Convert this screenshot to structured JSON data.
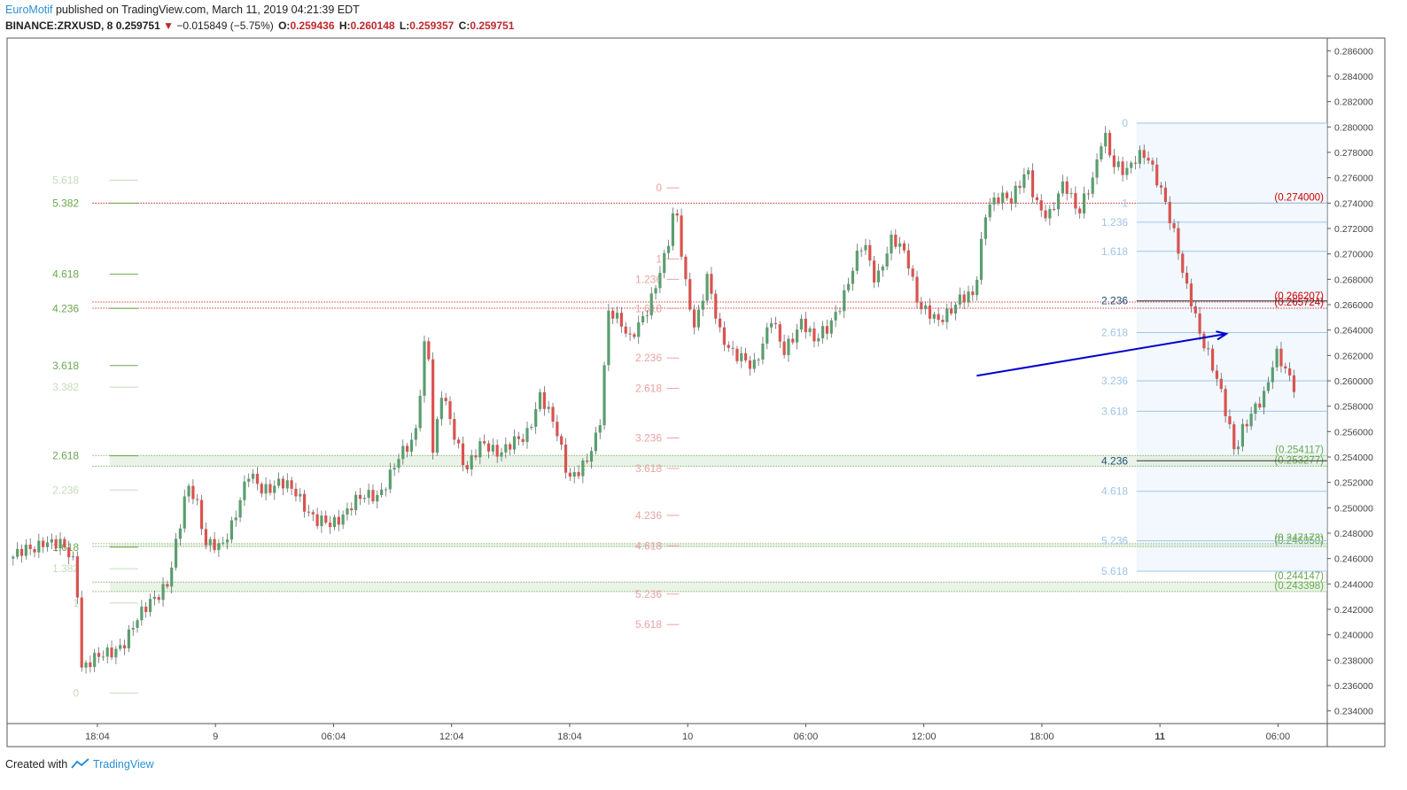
{
  "header": {
    "author": "EuroMotif",
    "published_text": "published on TradingView.com, March 11, 2019 04:21:39 EDT",
    "symbol": "BINANCE:ZRXUSD, 8",
    "last": "0.259751",
    "change_arrow": "▼",
    "change": "−0.015849 (−5.75%)",
    "o_label": "O:",
    "o_value": "0.259436",
    "h_label": "H:",
    "h_value": "0.260148",
    "l_label": "L:",
    "l_value": "0.259357",
    "c_label": "C:",
    "c_value": "0.259751"
  },
  "footer": {
    "created_with": "Created with",
    "brand": "TradingView"
  },
  "colors": {
    "up": "#5a9e6f",
    "down": "#d9534f",
    "wick": "#555555",
    "fib_green": "#6aa84f",
    "fib_pink": "#e8a3a3",
    "fib_blue": "#9fc5e8",
    "level_red": "#cc0000",
    "level_green": "#6aa84f",
    "arrow": "#0000cc",
    "axis_text": "#444444"
  },
  "chart_data": {
    "type": "candlestick",
    "ylim": [
      0.233,
      0.287
    ],
    "y_ticks": [
      "0.234000",
      "0.236000",
      "0.238000",
      "0.240000",
      "0.242000",
      "0.244000",
      "0.246000",
      "0.248000",
      "0.250000",
      "0.252000",
      "0.254000",
      "0.256000",
      "0.258000",
      "0.260000",
      "0.262000",
      "0.264000",
      "0.266000",
      "0.268000",
      "0.270000",
      "0.272000",
      "0.274000",
      "0.276000",
      "0.278000",
      "0.280000",
      "0.282000",
      "0.284000",
      "0.286000"
    ],
    "x_ticks": [
      {
        "label": "18:04",
        "t": 0.072,
        "bold": false
      },
      {
        "label": "9",
        "t": 0.168,
        "bold": false
      },
      {
        "label": "06:04",
        "t": 0.264,
        "bold": false
      },
      {
        "label": "12:04",
        "t": 0.36,
        "bold": false
      },
      {
        "label": "18:04",
        "t": 0.456,
        "bold": false
      },
      {
        "label": "10",
        "t": 0.552,
        "bold": false
      },
      {
        "label": "06:00",
        "t": 0.648,
        "bold": false
      },
      {
        "label": "12:00",
        "t": 0.744,
        "bold": false
      },
      {
        "label": "18:00",
        "t": 0.84,
        "bold": false
      },
      {
        "label": "11",
        "t": 0.936,
        "bold": true
      },
      {
        "label": "06:00",
        "t": 1.032,
        "bold": false
      }
    ],
    "price_path": [
      [
        0.0,
        0.246
      ],
      [
        0.02,
        0.2468
      ],
      [
        0.028,
        0.2475
      ],
      [
        0.045,
        0.2468
      ],
      [
        0.055,
        0.2455
      ],
      [
        0.058,
        0.2375
      ],
      [
        0.075,
        0.2382
      ],
      [
        0.095,
        0.2395
      ],
      [
        0.115,
        0.2428
      ],
      [
        0.13,
        0.244
      ],
      [
        0.14,
        0.249
      ],
      [
        0.145,
        0.252
      ],
      [
        0.152,
        0.251
      ],
      [
        0.16,
        0.247
      ],
      [
        0.172,
        0.2468
      ],
      [
        0.182,
        0.249
      ],
      [
        0.195,
        0.2525
      ],
      [
        0.205,
        0.2515
      ],
      [
        0.22,
        0.252
      ],
      [
        0.235,
        0.251
      ],
      [
        0.25,
        0.249
      ],
      [
        0.262,
        0.2485
      ],
      [
        0.28,
        0.2505
      ],
      [
        0.3,
        0.251
      ],
      [
        0.315,
        0.2535
      ],
      [
        0.33,
        0.2555
      ],
      [
        0.335,
        0.26
      ],
      [
        0.34,
        0.265
      ],
      [
        0.345,
        0.254
      ],
      [
        0.352,
        0.259
      ],
      [
        0.362,
        0.256
      ],
      [
        0.372,
        0.253
      ],
      [
        0.385,
        0.255
      ],
      [
        0.4,
        0.2545
      ],
      [
        0.42,
        0.2555
      ],
      [
        0.432,
        0.259
      ],
      [
        0.445,
        0.256
      ],
      [
        0.455,
        0.2525
      ],
      [
        0.47,
        0.2535
      ],
      [
        0.48,
        0.256
      ],
      [
        0.488,
        0.266
      ],
      [
        0.495,
        0.265
      ],
      [
        0.505,
        0.263
      ],
      [
        0.52,
        0.266
      ],
      [
        0.535,
        0.27
      ],
      [
        0.542,
        0.274
      ],
      [
        0.55,
        0.268
      ],
      [
        0.558,
        0.264
      ],
      [
        0.568,
        0.268
      ],
      [
        0.578,
        0.264
      ],
      [
        0.59,
        0.262
      ],
      [
        0.605,
        0.261
      ],
      [
        0.62,
        0.265
      ],
      [
        0.63,
        0.262
      ],
      [
        0.645,
        0.265
      ],
      [
        0.655,
        0.263
      ],
      [
        0.665,
        0.264
      ],
      [
        0.68,
        0.267
      ],
      [
        0.695,
        0.271
      ],
      [
        0.705,
        0.268
      ],
      [
        0.718,
        0.271
      ],
      [
        0.73,
        0.27
      ],
      [
        0.74,
        0.266
      ],
      [
        0.755,
        0.2645
      ],
      [
        0.772,
        0.2665
      ],
      [
        0.785,
        0.2665
      ],
      [
        0.795,
        0.274
      ],
      [
        0.805,
        0.2745
      ],
      [
        0.815,
        0.274
      ],
      [
        0.828,
        0.277
      ],
      [
        0.835,
        0.274
      ],
      [
        0.845,
        0.2725
      ],
      [
        0.858,
        0.276
      ],
      [
        0.87,
        0.273
      ],
      [
        0.882,
        0.276
      ],
      [
        0.89,
        0.28
      ],
      [
        0.898,
        0.277
      ],
      [
        0.908,
        0.2762
      ],
      [
        0.918,
        0.278
      ],
      [
        0.925,
        0.278
      ],
      [
        0.932,
        0.276
      ],
      [
        0.94,
        0.274
      ],
      [
        0.95,
        0.271
      ],
      [
        0.956,
        0.268
      ],
      [
        0.962,
        0.266
      ],
      [
        0.968,
        0.2635
      ],
      [
        0.976,
        0.262
      ],
      [
        0.984,
        0.26
      ],
      [
        0.992,
        0.2565
      ],
      [
        0.997,
        0.254
      ],
      [
        1.003,
        0.256
      ],
      [
        1.012,
        0.258
      ],
      [
        1.022,
        0.259
      ],
      [
        1.03,
        0.262
      ],
      [
        1.038,
        0.261
      ],
      [
        1.045,
        0.2598
      ]
    ],
    "horizontal_levels": [
      {
        "label": "(0.274000)",
        "price": 0.274,
        "color": "level_red"
      },
      {
        "label": "(0.266207)",
        "price": 0.26621,
        "color": "level_red"
      },
      {
        "label": "(0.265724)",
        "price": 0.26572,
        "color": "level_red"
      },
      {
        "label": "(0.254117)",
        "price": 0.25412,
        "color": "level_green"
      },
      {
        "label": "(0.253277)",
        "price": 0.25328,
        "color": "level_green"
      },
      {
        "label": "(0.247173)",
        "price": 0.24717,
        "color": "level_green"
      },
      {
        "label": "(0.246950)",
        "price": 0.24695,
        "color": "level_green"
      },
      {
        "label": "(0.244147)",
        "price": 0.24415,
        "color": "level_green"
      },
      {
        "label": "(0.243398)",
        "price": 0.2434,
        "color": "level_green"
      }
    ],
    "fib_left": [
      {
        "label": "5.618",
        "price": 0.2758,
        "faded": true
      },
      {
        "label": "5.382",
        "price": 0.274,
        "faded": false
      },
      {
        "label": "4.618",
        "price": 0.2684,
        "faded": false
      },
      {
        "label": "4.236",
        "price": 0.2657,
        "faded": false
      },
      {
        "label": "3.618",
        "price": 0.2612,
        "faded": false
      },
      {
        "label": "3.382",
        "price": 0.2595,
        "faded": true
      },
      {
        "label": "2.618",
        "price": 0.2541,
        "faded": false
      },
      {
        "label": "2.236",
        "price": 0.2514,
        "faded": true
      },
      {
        "label": "1.618",
        "price": 0.2469,
        "faded": false
      },
      {
        "label": "1.382",
        "price": 0.2452,
        "faded": true
      },
      {
        "label": "1",
        "price": 0.2425,
        "faded": true
      },
      {
        "label": "0",
        "price": 0.2354,
        "faded": true
      }
    ],
    "fib_mid": [
      {
        "label": "0",
        "price": 0.2752
      },
      {
        "label": "1",
        "price": 0.2696
      },
      {
        "label": "1.236",
        "price": 0.268
      },
      {
        "label": "1.618",
        "price": 0.2657
      },
      {
        "label": "2.236",
        "price": 0.2618
      },
      {
        "label": "2.618",
        "price": 0.2594
      },
      {
        "label": "3.236",
        "price": 0.2555
      },
      {
        "label": "3.618",
        "price": 0.2531
      },
      {
        "label": "4.236",
        "price": 0.2494
      },
      {
        "label": "4.618",
        "price": 0.247
      },
      {
        "label": "5.236",
        "price": 0.2432
      },
      {
        "label": "5.618",
        "price": 0.2408
      }
    ],
    "fib_right": [
      {
        "label": "0",
        "price": 0.2803
      },
      {
        "label": "1",
        "price": 0.274
      },
      {
        "label": "1.236",
        "price": 0.2725
      },
      {
        "label": "1.618",
        "price": 0.2702
      },
      {
        "label": "2.236",
        "price": 0.2663,
        "dark": true
      },
      {
        "label": "2.618",
        "price": 0.2638
      },
      {
        "label": "3.236",
        "price": 0.26
      },
      {
        "label": "3.618",
        "price": 0.2576
      },
      {
        "label": "4.236",
        "price": 0.2537,
        "dark": true
      },
      {
        "label": "4.618",
        "price": 0.2513
      },
      {
        "label": "5.236",
        "price": 0.2474
      },
      {
        "label": "5.618",
        "price": 0.245
      }
    ],
    "arrow": {
      "from": [
        0.787,
        0.2604
      ],
      "to": [
        0.99,
        0.2637
      ]
    }
  }
}
